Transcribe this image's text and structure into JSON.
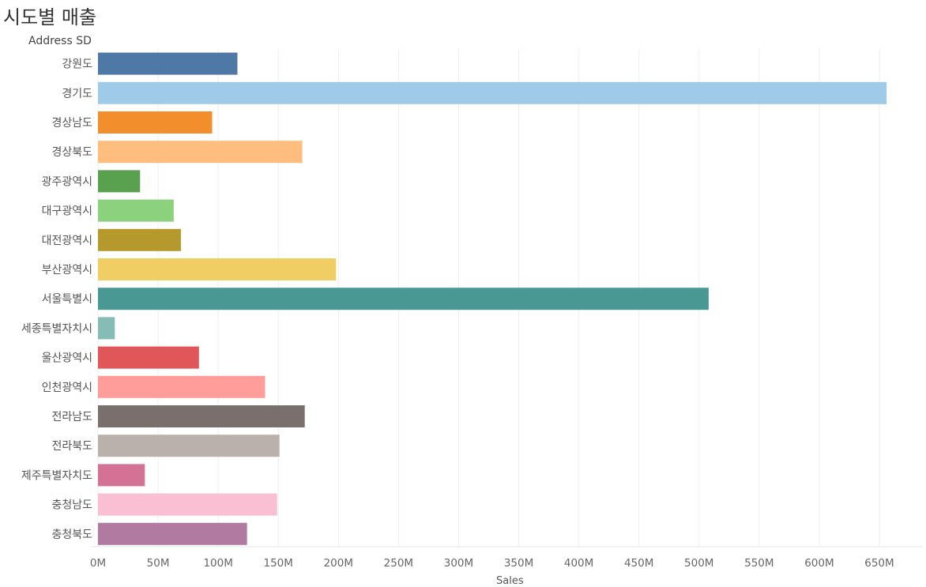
{
  "chart_data": {
    "type": "bar",
    "orientation": "horizontal",
    "title": "시도별 매출",
    "category_field_label": "Address SD",
    "xlabel": "Sales",
    "xlim": [
      0,
      690000000
    ],
    "tick_values": [
      0,
      50000000,
      100000000,
      150000000,
      200000000,
      250000000,
      300000000,
      350000000,
      400000000,
      450000000,
      500000000,
      550000000,
      600000000,
      650000000
    ],
    "tick_labels": [
      "0M",
      "50M",
      "100M",
      "150M",
      "200M",
      "250M",
      "300M",
      "350M",
      "400M",
      "450M",
      "500M",
      "550M",
      "600M",
      "650M"
    ],
    "grid": true,
    "categories": [
      "강원도",
      "경기도",
      "경상남도",
      "경상북도",
      "광주광역시",
      "대구광역시",
      "대전광역시",
      "부산광역시",
      "서울특별시",
      "세종특별자치시",
      "울산광역시",
      "인천광역시",
      "전라남도",
      "전라북도",
      "제주특별자치도",
      "충청남도",
      "충청북도"
    ],
    "values": [
      116000000,
      656000000,
      95000000,
      170000000,
      35000000,
      63000000,
      69000000,
      198000000,
      508000000,
      14000000,
      84000000,
      139000000,
      172000000,
      151000000,
      39000000,
      149000000,
      124000000
    ],
    "colors": [
      "#4e79a7",
      "#a0cbe8",
      "#f28e2b",
      "#ffbe7d",
      "#59a14f",
      "#8cd17d",
      "#b6992d",
      "#f1ce63",
      "#499894",
      "#86bcb6",
      "#e15759",
      "#ff9d9a",
      "#79706e",
      "#bab0ac",
      "#d37295",
      "#fabfd2",
      "#b07aa1"
    ]
  }
}
